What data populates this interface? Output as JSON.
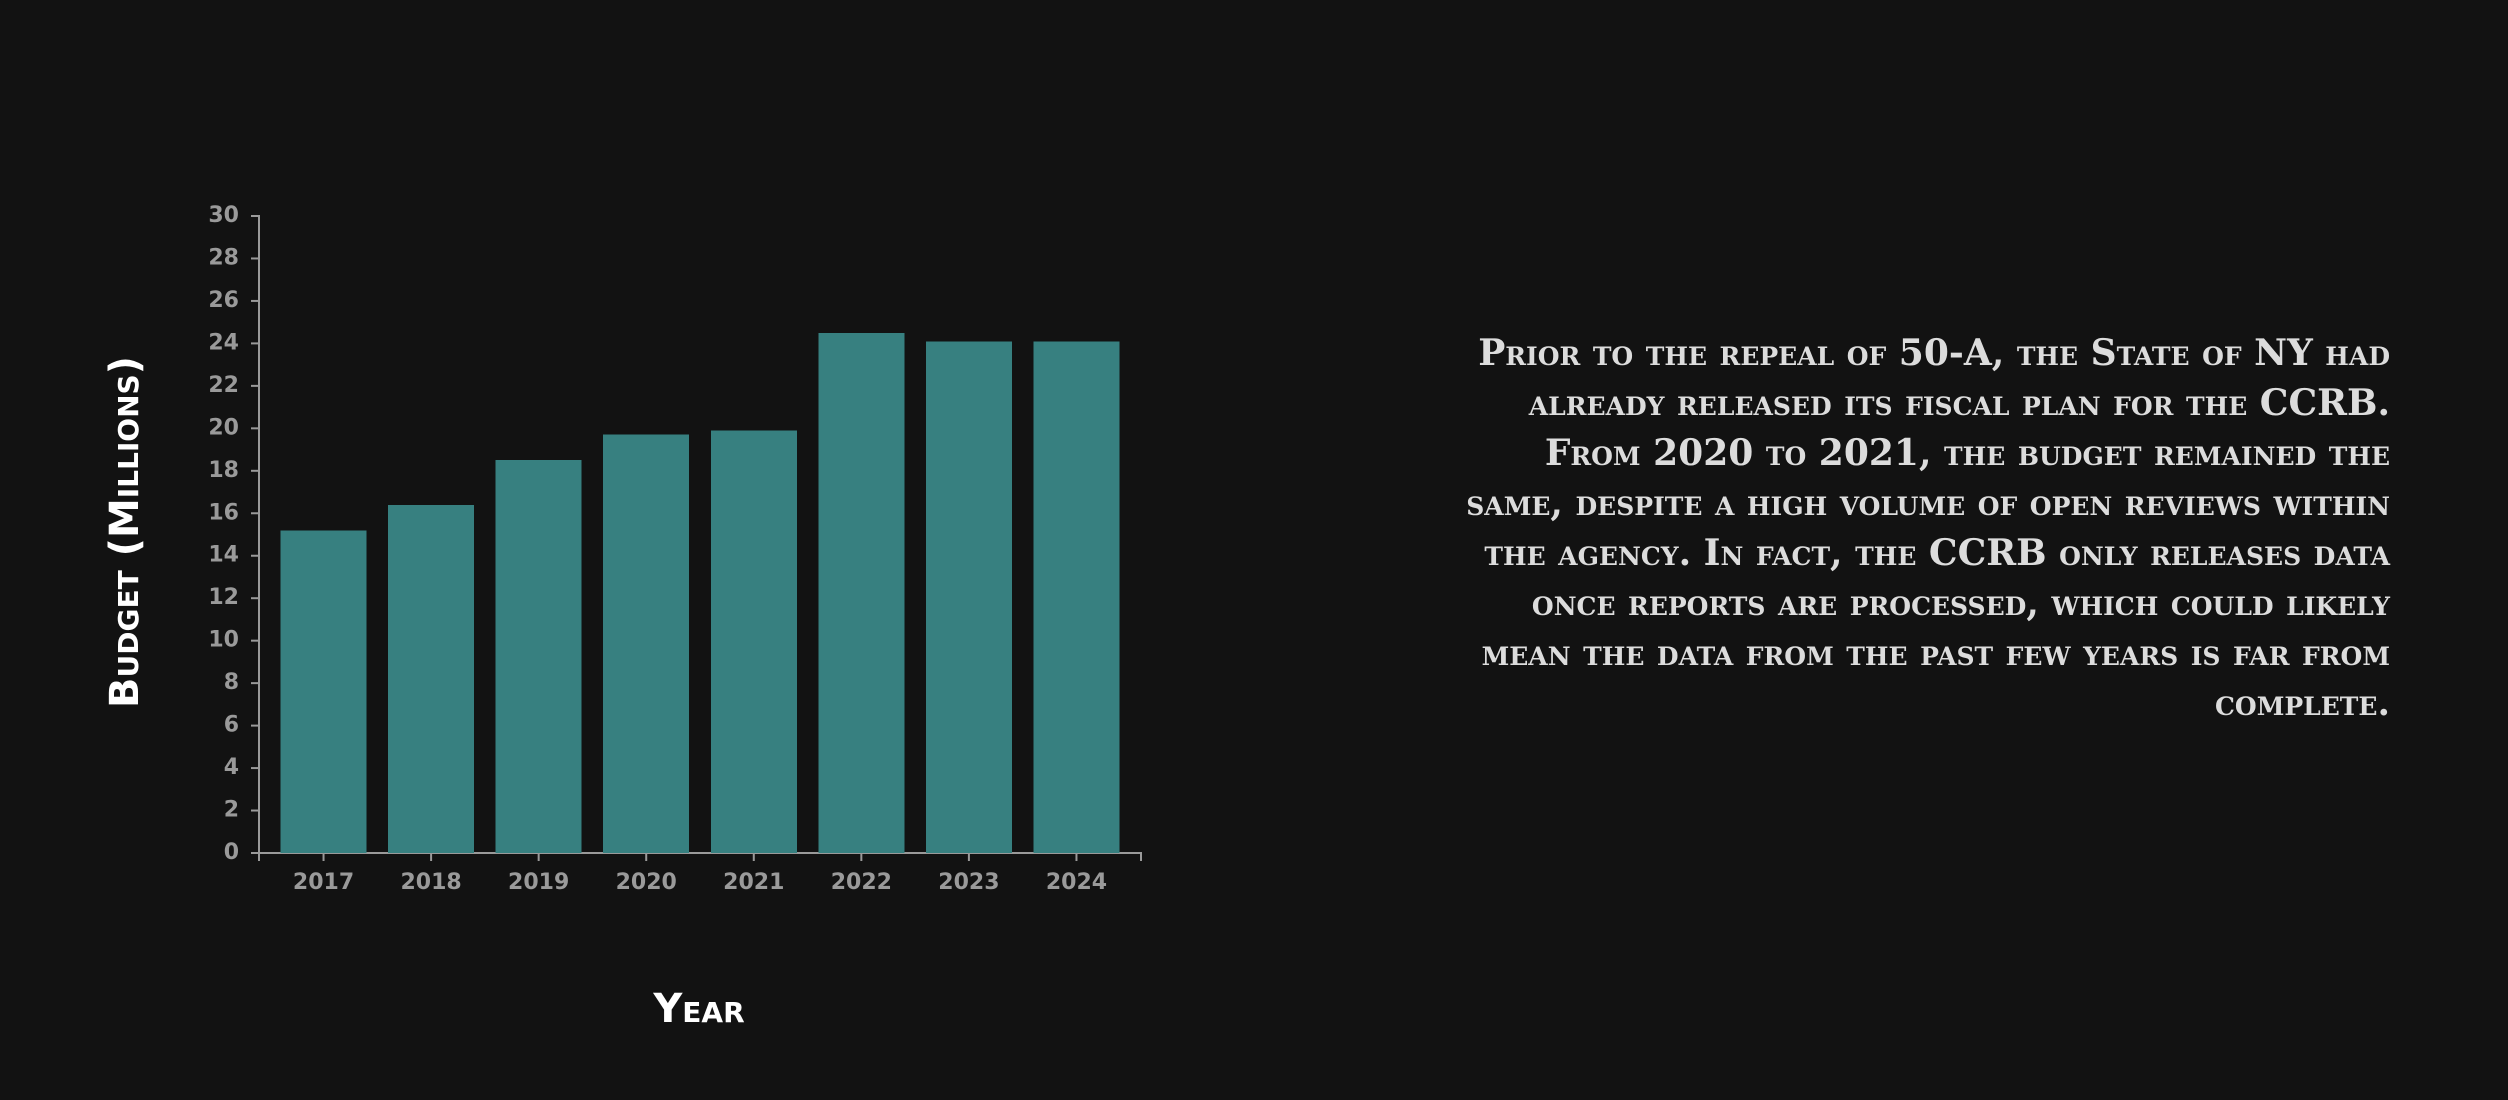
{
  "chart_data": {
    "type": "bar",
    "categories": [
      "2017",
      "2018",
      "2019",
      "2020",
      "2021",
      "2022",
      "2023",
      "2024"
    ],
    "values": [
      15.2,
      16.4,
      18.5,
      19.7,
      19.9,
      24.5,
      24.1,
      24.1
    ],
    "xlabel": "Year",
    "ylabel": "Budget (Millions)",
    "ylim": [
      0,
      30
    ],
    "yticks": [
      0,
      2,
      4,
      6,
      8,
      10,
      12,
      14,
      16,
      18,
      20,
      22,
      24,
      26,
      28,
      30
    ],
    "grid": false,
    "bar_color": "#378080",
    "axis_color": "#9a9a9a",
    "background_color": "#121212"
  },
  "description": "Prior to the repeal of 50-A, the State of NY had already released its fiscal plan for the CCRB. From 2020 to 2021, the budget remained the same, despite a high volume of open reviews within the agency. In fact, the CCRB only releases data once reports are processed, which could likely mean the data from the past few years is far from complete."
}
